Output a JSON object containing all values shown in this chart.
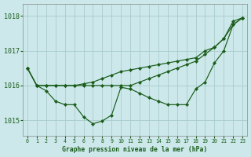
{
  "background_color": "#cce8ea",
  "grid_color": "#aacccc",
  "line_color": "#1a5c1a",
  "title": "Graphe pression niveau de la mer (hPa)",
  "xlim": [
    -0.5,
    23.5
  ],
  "ylim": [
    1014.55,
    1018.35
  ],
  "yticks": [
    1015,
    1016,
    1017,
    1018
  ],
  "xticks": [
    0,
    1,
    2,
    3,
    4,
    5,
    6,
    7,
    8,
    9,
    10,
    11,
    12,
    13,
    14,
    15,
    16,
    17,
    18,
    19,
    20,
    21,
    22,
    23
  ],
  "series": [
    [
      1016.5,
      1016.0,
      1016.0,
      1016.0,
      1016.0,
      1016.0,
      1016.0,
      1016.0,
      1016.0,
      1016.0,
      1016.0,
      1016.0,
      1016.1,
      1016.2,
      1016.3,
      1016.4,
      1016.5,
      1016.6,
      1016.7,
      1016.9,
      1017.1,
      1017.35,
      1017.85,
      1017.95
    ],
    [
      1016.5,
      1016.0,
      1016.0,
      1016.0,
      1016.0,
      1016.0,
      1016.05,
      1016.1,
      1016.2,
      1016.3,
      1016.4,
      1016.45,
      1016.5,
      1016.55,
      1016.6,
      1016.65,
      1016.7,
      1016.75,
      1016.8,
      1017.0,
      1017.1,
      1017.35,
      1017.75,
      1017.95
    ],
    [
      1016.5,
      1016.0,
      1015.85,
      1015.55,
      1015.45,
      1015.45,
      1015.1,
      1014.9,
      1014.98,
      1015.15,
      1015.95,
      1015.9,
      1015.78,
      1015.65,
      1015.55,
      1015.45,
      1015.45,
      1015.45,
      1015.9,
      1016.1,
      1016.65,
      1017.0,
      1017.75,
      1017.95
    ]
  ]
}
